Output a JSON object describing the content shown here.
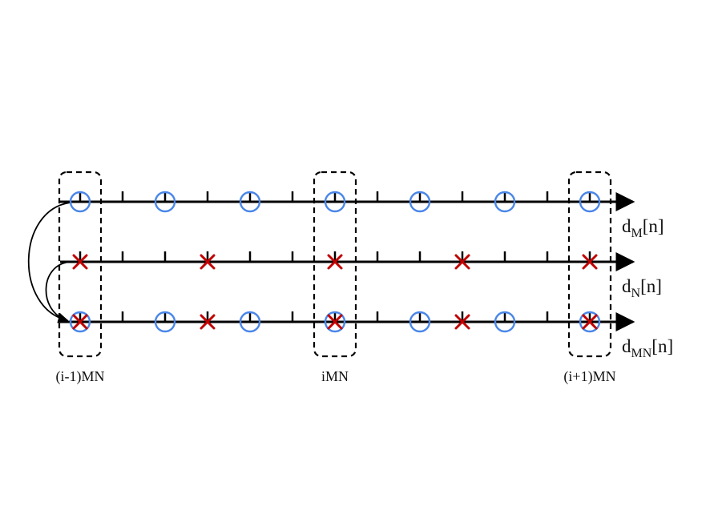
{
  "sequences": [
    {
      "id": "dM",
      "label_base": "d",
      "label_sub": "M",
      "label_tail": "[n]",
      "circles_at": [
        0,
        2,
        4,
        6,
        8,
        10,
        12
      ],
      "crosses_at": []
    },
    {
      "id": "dN",
      "label_base": "d",
      "label_sub": "N",
      "label_tail": "[n]",
      "circles_at": [],
      "crosses_at": [
        0,
        3,
        6,
        9,
        12
      ]
    },
    {
      "id": "dMN",
      "label_base": "d",
      "label_sub": "MN",
      "label_tail": "[n]",
      "circles_at": [
        0,
        2,
        4,
        6,
        8,
        10,
        12
      ],
      "crosses_at": [
        0,
        3,
        6,
        9,
        12
      ]
    }
  ],
  "tick_count": 13,
  "windows": [
    {
      "at": 0,
      "label": "(i-1)MN"
    },
    {
      "at": 6,
      "label": "iMN"
    },
    {
      "at": 12,
      "label": "(i+1)MN"
    }
  ],
  "colors": {
    "circle": "#4a86e8",
    "cross": "#c00000",
    "line": "#000000"
  }
}
